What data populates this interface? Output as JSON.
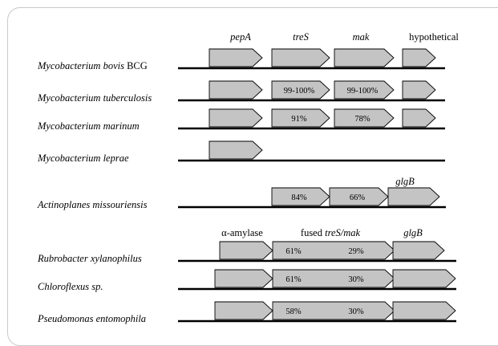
{
  "colors": {
    "gene_fill": "#c4c4c4",
    "gene_stroke": "#000000",
    "line": "#000000"
  },
  "headers": [
    {
      "id": "pepA",
      "text": "pepA",
      "italic": true
    },
    {
      "id": "treS",
      "text": "treS",
      "italic": true
    },
    {
      "id": "mak",
      "text": "mak",
      "italic": true
    },
    {
      "id": "hypothetical",
      "text": "hypothetical",
      "italic": false
    },
    {
      "id": "glgB-1",
      "text": "glgB",
      "italic": true
    },
    {
      "id": "alpha-amylase",
      "text": "α-amylase",
      "italic": false
    },
    {
      "id": "fused",
      "text": "fused ",
      "italic": false,
      "suffix": "treS/mak",
      "suffix_italic": true
    },
    {
      "id": "glgB-2",
      "text": "glgB",
      "italic": true
    }
  ],
  "organisms": [
    {
      "id": "m-bovis",
      "name": "Mycobacterium bovis",
      "suffix": " BCG",
      "genes": [
        {
          "id": "pepA"
        },
        {
          "id": "treS"
        },
        {
          "id": "mak"
        },
        {
          "id": "hypothetical"
        }
      ]
    },
    {
      "id": "m-tuberculosis",
      "name": "Mycobacterium tuberculosis",
      "suffix": "",
      "genes": [
        {
          "id": "pepA"
        },
        {
          "id": "treS",
          "label": "99-100%"
        },
        {
          "id": "mak",
          "label": "99-100%"
        },
        {
          "id": "hypothetical"
        }
      ]
    },
    {
      "id": "m-marinum",
      "name": "Mycobacterium marinum",
      "suffix": "",
      "genes": [
        {
          "id": "pepA"
        },
        {
          "id": "treS",
          "label": "91%"
        },
        {
          "id": "mak",
          "label": "78%"
        },
        {
          "id": "hypothetical"
        }
      ]
    },
    {
      "id": "m-leprae",
      "name": "Mycobacterium leprae",
      "suffix": "",
      "genes": [
        {
          "id": "pepA"
        }
      ]
    },
    {
      "id": "a-missouriensis",
      "name": "Actinoplanes missouriensis",
      "suffix": "",
      "genes": [
        {
          "id": "treS",
          "label": "84%"
        },
        {
          "id": "mak",
          "label": "66%"
        },
        {
          "id": "glgB"
        }
      ]
    },
    {
      "id": "r-xylanophilus",
      "name": "Rubrobacter xylanophilus",
      "suffix": "",
      "genes": [
        {
          "id": "alpha-amylase"
        },
        {
          "id": "treS-mak",
          "labels": [
            "61%",
            "29%"
          ]
        },
        {
          "id": "glgB"
        }
      ]
    },
    {
      "id": "chloroflexus",
      "name": "Chloroflexus sp.",
      "suffix": "",
      "genes": [
        {
          "id": "alpha-amylase"
        },
        {
          "id": "treS-mak",
          "labels": [
            "61%",
            "30%"
          ]
        },
        {
          "id": "glgB"
        }
      ]
    },
    {
      "id": "p-entomophila",
      "name": "Pseudomonas entomophila",
      "suffix": "",
      "genes": [
        {
          "id": "alpha-amylase"
        },
        {
          "id": "treS-mak",
          "labels": [
            "58%",
            "30%"
          ]
        },
        {
          "id": "glgB"
        }
      ]
    }
  ]
}
